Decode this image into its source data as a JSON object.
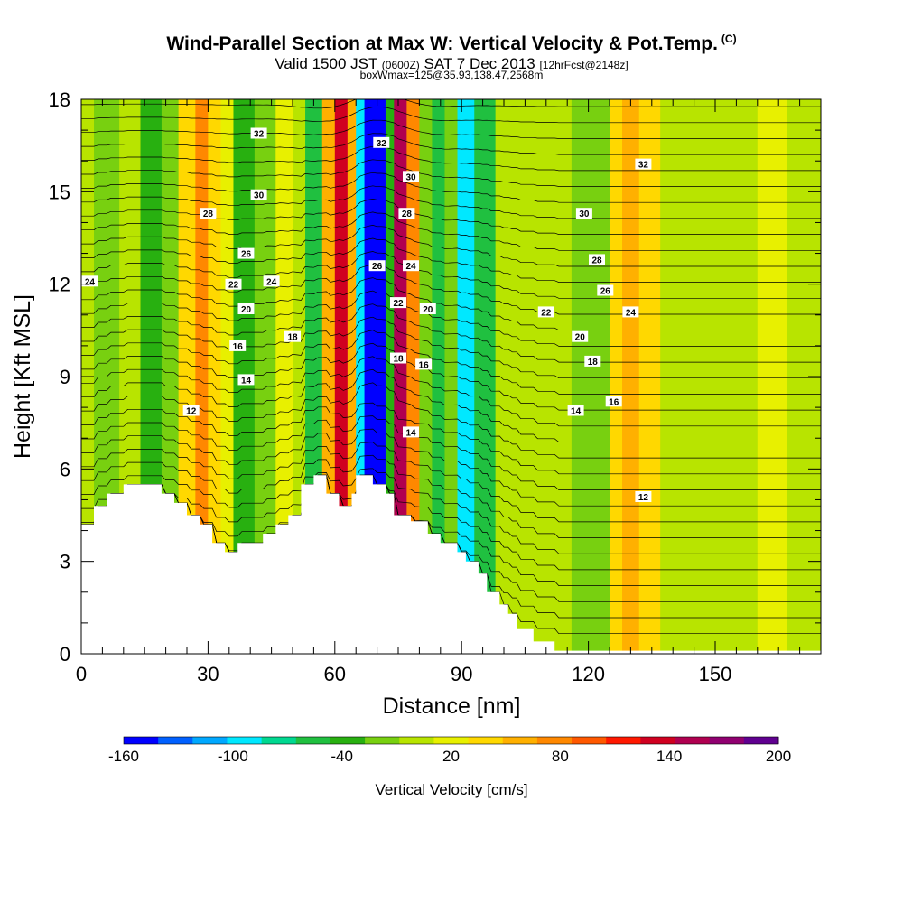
{
  "title_main": "Wind-Parallel Section at Max W: Vertical Velocity & Pot.Temp.",
  "title_mark": "(C)",
  "subtitle_prefix": "Valid 1500 JST",
  "subtitle_small1": "(0600Z)",
  "subtitle_mid": "SAT 7 Dec 2013",
  "subtitle_small2": "[12hrFcst@2148z]",
  "subtitle2": "boxWmax=125@35.93,138.47,2568m",
  "chart_data": {
    "type": "heatmap",
    "xlabel": "Distance [nm]",
    "ylabel": "Height [Kft MSL]",
    "xlim": [
      0,
      175
    ],
    "ylim": [
      0,
      18
    ],
    "x_ticks": [
      0,
      30,
      60,
      90,
      120,
      150
    ],
    "y_ticks": [
      0,
      3,
      6,
      9,
      12,
      15,
      18
    ],
    "colorbar": {
      "title": "Vertical Velocity [cm/s]",
      "range": [
        -160,
        200
      ],
      "tick_values": [
        -160,
        -100,
        -40,
        20,
        80,
        140,
        200
      ],
      "colors": [
        "#0000ff",
        "#0060ff",
        "#00a8ff",
        "#00e8ff",
        "#00d890",
        "#20c040",
        "#28b010",
        "#78d010",
        "#b8e400",
        "#e8f000",
        "#ffd800",
        "#ffb000",
        "#ff8800",
        "#ff5800",
        "#ff1800",
        "#d00020",
        "#b00050",
        "#900070",
        "#600090"
      ]
    },
    "velocity_cells": [
      {
        "x": [
          0,
          3
        ],
        "w": 5
      },
      {
        "x": [
          3,
          9
        ],
        "w": -25
      },
      {
        "x": [
          9,
          14
        ],
        "w": -5
      },
      {
        "x": [
          14,
          19
        ],
        "w": -30
      },
      {
        "x": [
          19,
          23
        ],
        "w": -10
      },
      {
        "x": [
          23,
          27
        ],
        "w": 30
      },
      {
        "x": [
          27,
          30
        ],
        "w": 70
      },
      {
        "x": [
          30,
          33
        ],
        "w": 45
      },
      {
        "x": [
          33,
          36
        ],
        "w": 15
      },
      {
        "x": [
          36,
          41
        ],
        "w": -35
      },
      {
        "x": [
          41,
          46
        ],
        "w": -10
      },
      {
        "x": [
          46,
          50
        ],
        "w": 20
      },
      {
        "x": [
          50,
          53
        ],
        "w": -5
      },
      {
        "x": [
          53,
          57
        ],
        "w": -60
      },
      {
        "x": [
          57,
          60
        ],
        "w": 50
      },
      {
        "x": [
          60,
          63
        ],
        "w": 140
      },
      {
        "x": [
          63,
          65
        ],
        "w": 60
      },
      {
        "x": [
          65,
          67
        ],
        "w": -90
      },
      {
        "x": [
          67,
          72
        ],
        "w": -160
      },
      {
        "x": [
          72,
          74
        ],
        "w": -40
      },
      {
        "x": [
          74,
          77
        ],
        "w": 145
      },
      {
        "x": [
          77,
          80
        ],
        "w": 70
      },
      {
        "x": [
          80,
          83
        ],
        "w": -10
      },
      {
        "x": [
          83,
          86
        ],
        "w": -60
      },
      {
        "x": [
          86,
          89
        ],
        "w": -20
      },
      {
        "x": [
          89,
          93
        ],
        "w": -95
      },
      {
        "x": [
          93,
          98
        ],
        "w": -60
      },
      {
        "x": [
          98,
          104
        ],
        "w": 5
      },
      {
        "x": [
          104,
          110
        ],
        "w": 10
      },
      {
        "x": [
          110,
          116
        ],
        "w": 5
      },
      {
        "x": [
          116,
          121
        ],
        "w": -25
      },
      {
        "x": [
          121,
          125
        ],
        "w": -15
      },
      {
        "x": [
          125,
          128
        ],
        "w": 30
      },
      {
        "x": [
          128,
          132
        ],
        "w": 60
      },
      {
        "x": [
          132,
          137
        ],
        "w": 30
      },
      {
        "x": [
          137,
          145
        ],
        "w": 10
      },
      {
        "x": [
          145,
          160
        ],
        "w": 5
      },
      {
        "x": [
          160,
          167
        ],
        "w": 15
      },
      {
        "x": [
          167,
          175
        ],
        "w": 5
      }
    ],
    "terrain_x": [
      0,
      3,
      3,
      6,
      6,
      10,
      10,
      19,
      19,
      22,
      22,
      25,
      25,
      28,
      28,
      31,
      31,
      34,
      34,
      37,
      37,
      43,
      43,
      46,
      46,
      49,
      49,
      52,
      52,
      55,
      55,
      58,
      58,
      61,
      61,
      64,
      64,
      65,
      65,
      68,
      68,
      69,
      69,
      72,
      72,
      74,
      74,
      78,
      78,
      82,
      82,
      85,
      85,
      89,
      89,
      91,
      91,
      94,
      94,
      96,
      96,
      99,
      99,
      101,
      101,
      103,
      103,
      107,
      107,
      112,
      112,
      113,
      113,
      175
    ],
    "terrain_y": [
      4.2,
      4.2,
      4.8,
      4.8,
      5.2,
      5.2,
      5.5,
      5.5,
      5.2,
      5.2,
      4.9,
      4.9,
      4.5,
      4.5,
      4.2,
      4.2,
      3.6,
      3.6,
      3.3,
      3.3,
      3.6,
      3.6,
      3.9,
      3.9,
      4.2,
      4.2,
      4.5,
      4.5,
      5.5,
      5.5,
      5.8,
      5.8,
      5.2,
      5.2,
      4.8,
      4.8,
      5.2,
      5.2,
      5.8,
      5.8,
      5.8,
      5.8,
      5.5,
      5.5,
      5.2,
      5.2,
      4.5,
      4.5,
      4.3,
      4.3,
      3.9,
      3.9,
      3.6,
      3.6,
      3.3,
      3.3,
      3.0,
      3.0,
      2.6,
      2.6,
      2.0,
      2.0,
      1.6,
      1.6,
      1.3,
      1.3,
      0.8,
      0.8,
      0.4,
      0.4,
      0.1,
      0.1,
      0.1,
      0.1
    ],
    "contour_labels": [
      {
        "text": "32",
        "x": 42,
        "y": 16.9
      },
      {
        "text": "32",
        "x": 71,
        "y": 16.6
      },
      {
        "text": "32",
        "x": 133,
        "y": 15.9
      },
      {
        "text": "30",
        "x": 42,
        "y": 14.9
      },
      {
        "text": "30",
        "x": 78,
        "y": 15.5
      },
      {
        "text": "30",
        "x": 119,
        "y": 14.3
      },
      {
        "text": "28",
        "x": 30,
        "y": 14.3
      },
      {
        "text": "28",
        "x": 77,
        "y": 14.3
      },
      {
        "text": "28",
        "x": 122,
        "y": 12.8
      },
      {
        "text": "26",
        "x": 39,
        "y": 13.0
      },
      {
        "text": "26",
        "x": 70,
        "y": 12.6
      },
      {
        "text": "26",
        "x": 124,
        "y": 11.8
      },
      {
        "text": "24",
        "x": 2,
        "y": 12.1
      },
      {
        "text": "24",
        "x": 45,
        "y": 12.1
      },
      {
        "text": "24",
        "x": 78,
        "y": 12.6
      },
      {
        "text": "24",
        "x": 130,
        "y": 11.1
      },
      {
        "text": "22",
        "x": 36,
        "y": 12.0
      },
      {
        "text": "22",
        "x": 75,
        "y": 11.4
      },
      {
        "text": "22",
        "x": 110,
        "y": 11.1
      },
      {
        "text": "20",
        "x": 39,
        "y": 11.2
      },
      {
        "text": "20",
        "x": 82,
        "y": 11.2
      },
      {
        "text": "20",
        "x": 118,
        "y": 10.3
      },
      {
        "text": "18",
        "x": 50,
        "y": 10.3
      },
      {
        "text": "18",
        "x": 75,
        "y": 9.6
      },
      {
        "text": "18",
        "x": 121,
        "y": 9.5
      },
      {
        "text": "16",
        "x": 37,
        "y": 10.0
      },
      {
        "text": "16",
        "x": 81,
        "y": 9.4
      },
      {
        "text": "16",
        "x": 126,
        "y": 8.2
      },
      {
        "text": "14",
        "x": 39,
        "y": 8.9
      },
      {
        "text": "14",
        "x": 78,
        "y": 7.2
      },
      {
        "text": "14",
        "x": 117,
        "y": 7.9
      },
      {
        "text": "12",
        "x": 26,
        "y": 7.9
      },
      {
        "text": "12",
        "x": 133,
        "y": 5.1
      }
    ]
  }
}
